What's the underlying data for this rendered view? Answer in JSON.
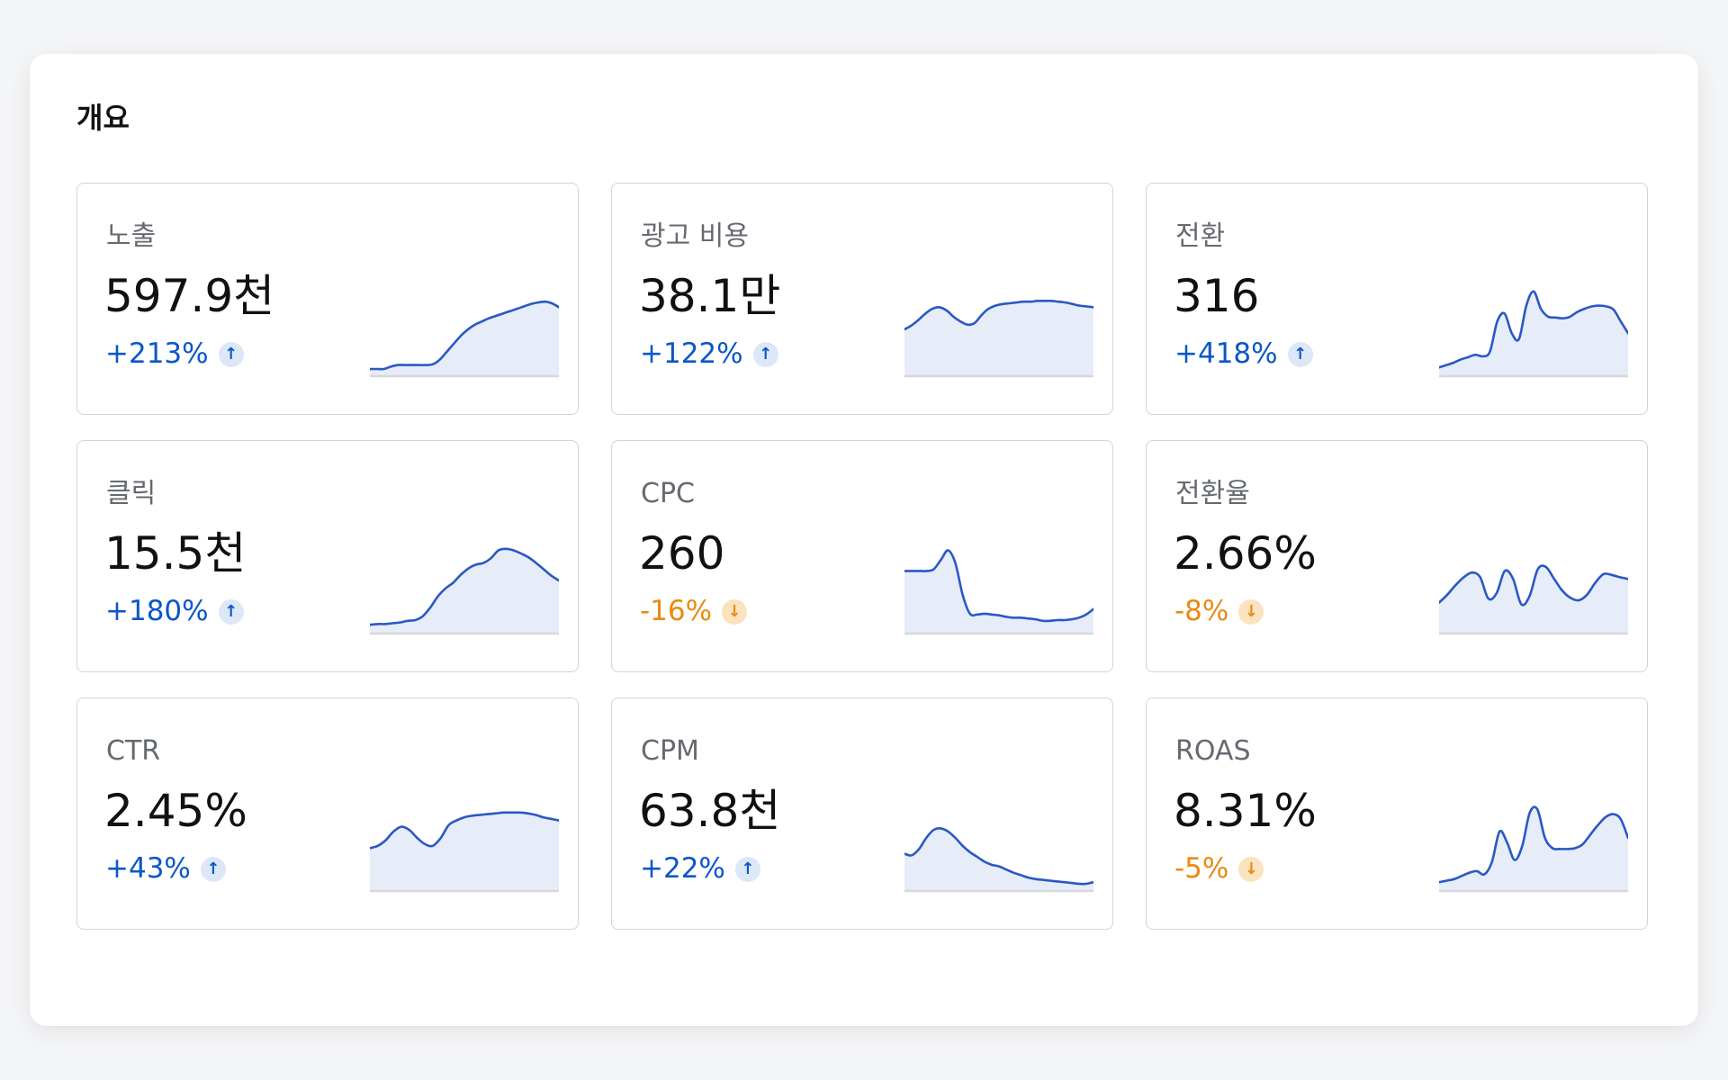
{
  "overview": {
    "title": "개요",
    "cards": [
      {
        "label": "노출",
        "value": "597.9천",
        "change": "+213%",
        "direction": "up",
        "trend": [
          0,
          0,
          0,
          0.03,
          0.05,
          0.05,
          0.05,
          0.05,
          0.05,
          0.06,
          0.12,
          0.22,
          0.32,
          0.42,
          0.5,
          0.56,
          0.6,
          0.64,
          0.67,
          0.7,
          0.73,
          0.76,
          0.79,
          0.82,
          0.84,
          0.85,
          0.83,
          0.78
        ]
      },
      {
        "label": "광고 비용",
        "value": "38.1만",
        "change": "+122%",
        "direction": "up",
        "trend": [
          0.5,
          0.55,
          0.62,
          0.7,
          0.76,
          0.78,
          0.74,
          0.66,
          0.6,
          0.56,
          0.58,
          0.68,
          0.76,
          0.8,
          0.82,
          0.83,
          0.84,
          0.85,
          0.85,
          0.86,
          0.86,
          0.86,
          0.85,
          0.84,
          0.82,
          0.8,
          0.79,
          0.78
        ]
      },
      {
        "label": "전환",
        "value": "316",
        "change": "+418%",
        "direction": "up",
        "trend": [
          0.02,
          0.05,
          0.08,
          0.12,
          0.15,
          0.18,
          0.16,
          0.22,
          0.6,
          0.7,
          0.45,
          0.38,
          0.8,
          0.98,
          0.76,
          0.66,
          0.65,
          0.64,
          0.66,
          0.72,
          0.76,
          0.79,
          0.8,
          0.79,
          0.75,
          0.6,
          0.45
        ]
      },
      {
        "label": "클릭",
        "value": "15.5천",
        "change": "+180%",
        "direction": "up",
        "trend": [
          0.02,
          0.03,
          0.03,
          0.04,
          0.05,
          0.07,
          0.08,
          0.13,
          0.24,
          0.38,
          0.48,
          0.55,
          0.65,
          0.73,
          0.78,
          0.8,
          0.86,
          0.96,
          0.98,
          0.96,
          0.92,
          0.87,
          0.8,
          0.72,
          0.64,
          0.58
        ]
      },
      {
        "label": "CPC",
        "value": "260",
        "change": "-16%",
        "direction": "down",
        "trend": [
          0.7,
          0.7,
          0.7,
          0.7,
          0.72,
          0.84,
          0.96,
          0.8,
          0.4,
          0.16,
          0.15,
          0.16,
          0.15,
          0.14,
          0.12,
          0.11,
          0.11,
          0.1,
          0.09,
          0.07,
          0.07,
          0.08,
          0.08,
          0.09,
          0.11,
          0.15,
          0.22
        ]
      },
      {
        "label": "전환율",
        "value": "2.66%",
        "change": "-8%",
        "direction": "down",
        "trend": [
          0.3,
          0.4,
          0.52,
          0.62,
          0.68,
          0.62,
          0.35,
          0.42,
          0.7,
          0.6,
          0.28,
          0.38,
          0.72,
          0.75,
          0.6,
          0.45,
          0.36,
          0.33,
          0.4,
          0.55,
          0.66,
          0.65,
          0.62,
          0.6
        ]
      },
      {
        "label": "CTR",
        "value": "2.45%",
        "change": "+43%",
        "direction": "up",
        "trend": [
          0.45,
          0.48,
          0.55,
          0.66,
          0.72,
          0.68,
          0.58,
          0.5,
          0.48,
          0.58,
          0.74,
          0.8,
          0.84,
          0.86,
          0.87,
          0.88,
          0.89,
          0.9,
          0.9,
          0.9,
          0.89,
          0.87,
          0.84,
          0.82,
          0.8
        ]
      },
      {
        "label": "CPM",
        "value": "63.8천",
        "change": "+22%",
        "direction": "up",
        "trend": [
          0.38,
          0.36,
          0.44,
          0.58,
          0.68,
          0.7,
          0.66,
          0.58,
          0.48,
          0.4,
          0.34,
          0.28,
          0.24,
          0.22,
          0.18,
          0.14,
          0.11,
          0.08,
          0.06,
          0.05,
          0.04,
          0.03,
          0.02,
          0.01,
          0.0,
          0.0,
          0.02
        ]
      },
      {
        "label": "ROAS",
        "value": "8.31%",
        "change": "-5%",
        "direction": "down",
        "trend": [
          0.02,
          0.04,
          0.06,
          0.1,
          0.14,
          0.16,
          0.12,
          0.28,
          0.66,
          0.52,
          0.3,
          0.48,
          0.9,
          0.94,
          0.58,
          0.45,
          0.44,
          0.44,
          0.45,
          0.5,
          0.62,
          0.74,
          0.84,
          0.88,
          0.82,
          0.58
        ]
      }
    ]
  },
  "colors": {
    "up": "#0b57c7",
    "down": "#ea8a12",
    "line": "#2a58c4",
    "fill": "#e6ecf8",
    "baseline": "#d6d8dc"
  },
  "icons": {
    "up": "arrow-up-icon",
    "down": "arrow-down-icon"
  }
}
